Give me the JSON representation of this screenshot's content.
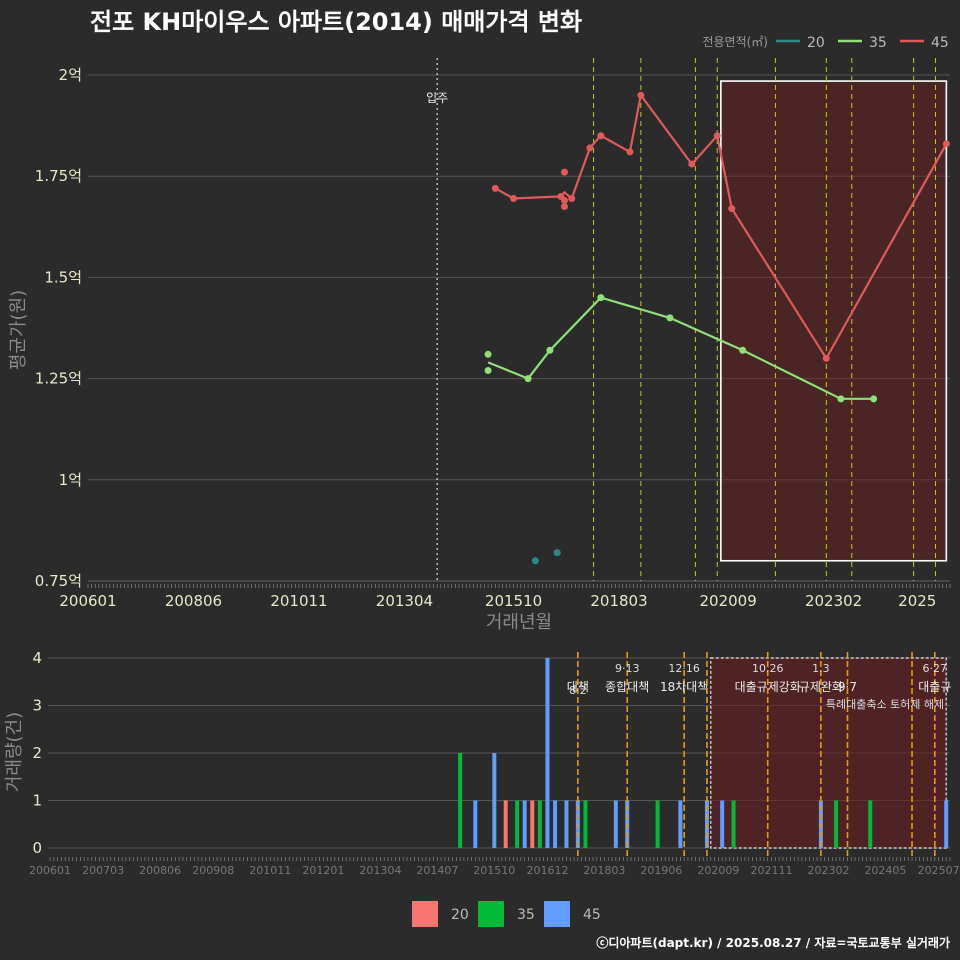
{
  "chart_data": [
    {
      "type": "line",
      "title": "전포 KH마이우스 아파트(2014) 매매가격 변화",
      "xlabel": "거래년월",
      "ylabel": "평균가(원)",
      "ylim": [
        0.75,
        2.0
      ],
      "xlim": [
        "2006-01",
        "2025-09"
      ],
      "x_ticks": [
        "200601",
        "200806",
        "201011",
        "201304",
        "201510",
        "201803",
        "202009",
        "202302",
        "2025"
      ],
      "y_ticks": [
        "0.75억",
        "1억",
        "1.25억",
        "1.5억",
        "1.75억",
        "2억"
      ],
      "y_tick_values": [
        0.75,
        1.0,
        1.25,
        1.5,
        1.75,
        2.0
      ],
      "legend_title": "전용면적(㎡)",
      "legend_position": "top-right",
      "grid": true,
      "series": [
        {
          "name": "20",
          "color": "#2a8a8a",
          "points": [
            {
              "x": "2016-04",
              "y": 0.8
            },
            {
              "x": "2016-10",
              "y": 0.82
            }
          ],
          "line": []
        },
        {
          "name": "35",
          "color": "#90e07a",
          "points": [
            {
              "x": "2015-03",
              "y": 1.31
            },
            {
              "x": "2015-03",
              "y": 1.27
            },
            {
              "x": "2016-02",
              "y": 1.25
            },
            {
              "x": "2016-08",
              "y": 1.32
            },
            {
              "x": "2017-10",
              "y": 1.45
            },
            {
              "x": "2019-05",
              "y": 1.4
            },
            {
              "x": "2021-01",
              "y": 1.32
            },
            {
              "x": "2023-04",
              "y": 1.2
            },
            {
              "x": "2024-01",
              "y": 1.2
            }
          ],
          "line": [
            {
              "x": "2015-03",
              "y": 1.29
            },
            {
              "x": "2016-02",
              "y": 1.25
            },
            {
              "x": "2016-08",
              "y": 1.32
            },
            {
              "x": "2017-10",
              "y": 1.45
            },
            {
              "x": "2019-05",
              "y": 1.4
            },
            {
              "x": "2021-01",
              "y": 1.32
            },
            {
              "x": "2023-04",
              "y": 1.2
            },
            {
              "x": "2024-01",
              "y": 1.2
            }
          ]
        },
        {
          "name": "45",
          "color": "#e05a5a",
          "points": [
            {
              "x": "2015-05",
              "y": 1.72
            },
            {
              "x": "2015-10",
              "y": 1.695
            },
            {
              "x": "2016-11",
              "y": 1.7
            },
            {
              "x": "2016-12",
              "y": 1.76
            },
            {
              "x": "2016-12",
              "y": 1.69
            },
            {
              "x": "2016-12",
              "y": 1.675
            },
            {
              "x": "2017-02",
              "y": 1.695
            },
            {
              "x": "2017-07",
              "y": 1.82
            },
            {
              "x": "2017-10",
              "y": 1.85
            },
            {
              "x": "2018-06",
              "y": 1.81
            },
            {
              "x": "2018-09",
              "y": 1.95
            },
            {
              "x": "2019-11",
              "y": 1.78
            },
            {
              "x": "2020-06",
              "y": 1.85
            },
            {
              "x": "2020-10",
              "y": 1.67
            },
            {
              "x": "2022-12",
              "y": 1.3
            },
            {
              "x": "2025-09",
              "y": 1.83
            }
          ],
          "line": [
            {
              "x": "2015-05",
              "y": 1.72
            },
            {
              "x": "2015-10",
              "y": 1.695
            },
            {
              "x": "2016-11",
              "y": 1.7
            },
            {
              "x": "2016-12",
              "y": 1.71
            },
            {
              "x": "2017-02",
              "y": 1.695
            },
            {
              "x": "2017-07",
              "y": 1.82
            },
            {
              "x": "2017-10",
              "y": 1.85
            },
            {
              "x": "2018-06",
              "y": 1.81
            },
            {
              "x": "2018-09",
              "y": 1.95
            },
            {
              "x": "2019-11",
              "y": 1.78
            },
            {
              "x": "2020-06",
              "y": 1.85
            },
            {
              "x": "2020-10",
              "y": 1.67
            },
            {
              "x": "2022-12",
              "y": 1.3
            },
            {
              "x": "2025-09",
              "y": 1.83
            }
          ]
        }
      ],
      "annotations": [
        {
          "x": "2014-01",
          "label": "입주"
        }
      ],
      "policy_lines": [
        "2017-08",
        "2018-09",
        "2019-12",
        "2020-06",
        "2021-10",
        "2022-12",
        "2023-07",
        "2024-12",
        "2025-06"
      ],
      "highlight_range": [
        "2020-07",
        "2025-09"
      ]
    },
    {
      "type": "bar",
      "ylabel": "거래량(건)",
      "ylim": [
        0,
        4
      ],
      "y_ticks": [
        "0",
        "1",
        "2",
        "3",
        "4"
      ],
      "x_ticks": [
        "200601",
        "200703",
        "200806",
        "200908",
        "201011",
        "201201",
        "201304",
        "201407",
        "201510",
        "201612",
        "201803",
        "201906",
        "202009",
        "202111",
        "202302",
        "202405",
        "202507"
      ],
      "legend_position": "bottom",
      "series_colors": {
        "20": "#f8766d",
        "35": "#00ba38",
        "45": "#619cff"
      },
      "bars": [
        {
          "x": "2015-01",
          "series": "35",
          "value": 2
        },
        {
          "x": "2015-05",
          "series": "45",
          "value": 1
        },
        {
          "x": "2015-10",
          "series": "45",
          "value": 2
        },
        {
          "x": "2016-01",
          "series": "20",
          "value": 1
        },
        {
          "x": "2016-04",
          "series": "35",
          "value": 1
        },
        {
          "x": "2016-06",
          "series": "45",
          "value": 1
        },
        {
          "x": "2016-08",
          "series": "20",
          "value": 1
        },
        {
          "x": "2016-10",
          "series": "35",
          "value": 1
        },
        {
          "x": "2016-12",
          "series": "45",
          "value": 4
        },
        {
          "x": "2017-02",
          "series": "45",
          "value": 1
        },
        {
          "x": "2017-05",
          "series": "45",
          "value": 1
        },
        {
          "x": "2017-08",
          "series": "45",
          "value": 1
        },
        {
          "x": "2017-10",
          "series": "35",
          "value": 1
        },
        {
          "x": "2018-06",
          "series": "45",
          "value": 1
        },
        {
          "x": "2018-09",
          "series": "45",
          "value": 1
        },
        {
          "x": "2019-05",
          "series": "35",
          "value": 1
        },
        {
          "x": "2019-11",
          "series": "45",
          "value": 1
        },
        {
          "x": "2020-06",
          "series": "45",
          "value": 1
        },
        {
          "x": "2020-10",
          "series": "45",
          "value": 1
        },
        {
          "x": "2021-01",
          "series": "35",
          "value": 1
        },
        {
          "x": "2022-12",
          "series": "45",
          "value": 1
        },
        {
          "x": "2023-04",
          "series": "35",
          "value": 1
        },
        {
          "x": "2024-01",
          "series": "35",
          "value": 1
        },
        {
          "x": "2025-09",
          "series": "45",
          "value": 1
        }
      ],
      "policy_lines": [
        {
          "x": "2017-08",
          "date": "8·2",
          "label": "대책"
        },
        {
          "x": "2018-09",
          "date": "9·13",
          "label": "종합대책"
        },
        {
          "x": "2019-12",
          "date": "12·16",
          "label": "18차대책"
        },
        {
          "x": "2020-06",
          "date": "",
          "label": ""
        },
        {
          "x": "2021-10",
          "date": "10.26",
          "label": "대출규제강화"
        },
        {
          "x": "2022-12",
          "date": "1.3",
          "label": "규제완화"
        },
        {
          "x": "2023-07",
          "date": "",
          "label": "9·7"
        },
        {
          "x": "2024-12",
          "date": "",
          "label": ""
        },
        {
          "x": "2025-06",
          "date": "6·27",
          "label": "대출규"
        }
      ],
      "extra_note": "특례대출축소 토허제 해제",
      "highlight_range": [
        "2020-07",
        "2025-09"
      ]
    }
  ],
  "footer": "ⓒ디아파트(dapt.kr) / 2025.08.27 / 자료=국토교통부 실거래가"
}
